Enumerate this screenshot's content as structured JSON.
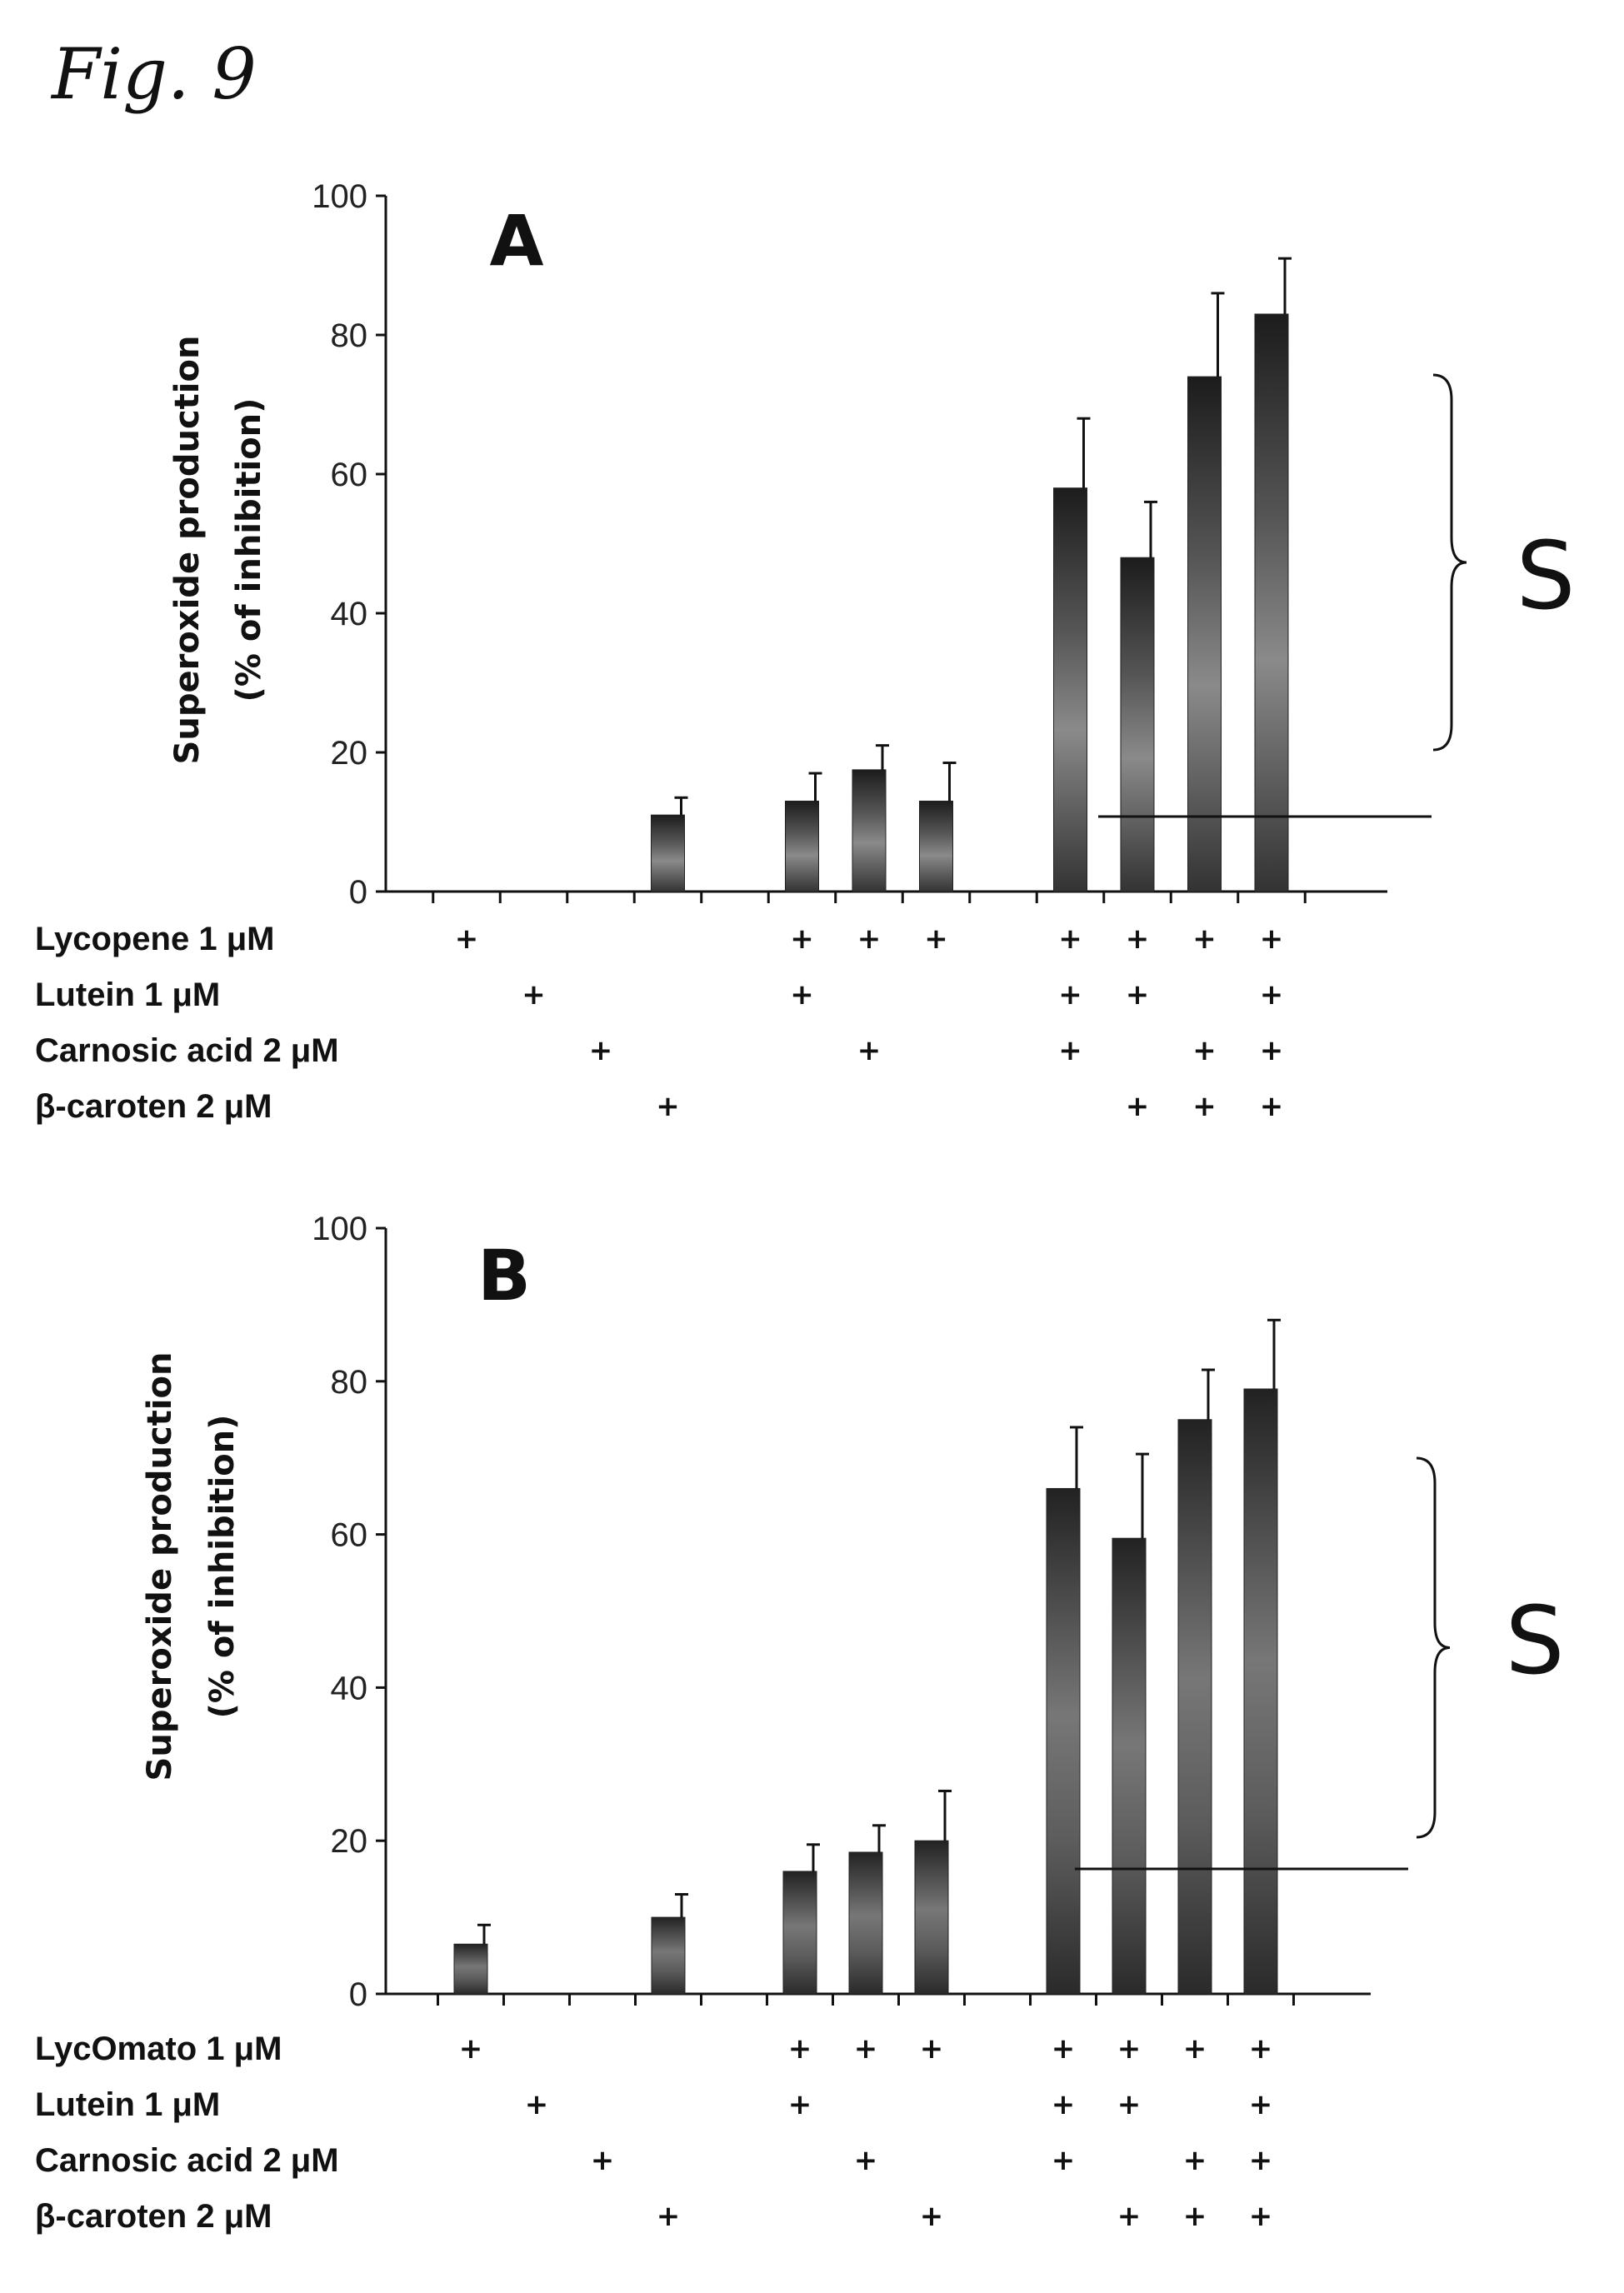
{
  "figure_title": "Fig. 9",
  "chart_data": [
    {
      "type": "bar",
      "panel": "A",
      "ylabel_line1": "Superoxide production",
      "ylabel_line2": "(% of inhibition)",
      "ylim": [
        0,
        100
      ],
      "yticks": [
        0,
        20,
        40,
        60,
        80,
        100
      ],
      "values": [
        null,
        null,
        null,
        11,
        null,
        13,
        17.5,
        13,
        null,
        58,
        48,
        74,
        83
      ],
      "errors": [
        null,
        null,
        null,
        2.5,
        null,
        4,
        3.5,
        5.5,
        null,
        10,
        8,
        12,
        8
      ],
      "conditions": [
        {
          "label": "Lycopene 1 μM",
          "plus": [
            0,
            5,
            6,
            7,
            9,
            10,
            11,
            12
          ]
        },
        {
          "label": "Lutein 1 μM",
          "plus": [
            1,
            5,
            9,
            10,
            12
          ]
        },
        {
          "label": "Carnosic acid 2 μM",
          "plus": [
            2,
            6,
            9,
            11,
            12
          ]
        },
        {
          "label": "β-caroten 2 μM",
          "plus": [
            3,
            10,
            11,
            12
          ]
        }
      ],
      "bracket_label": "S"
    },
    {
      "type": "bar",
      "panel": "B",
      "ylabel_line1": "Superoxide production",
      "ylabel_line2": "(% of inhibition)",
      "ylim": [
        0,
        100
      ],
      "yticks": [
        0,
        20,
        40,
        60,
        80,
        100
      ],
      "values": [
        6.5,
        null,
        null,
        10,
        null,
        16,
        18.5,
        20,
        null,
        66,
        59.5,
        75,
        79
      ],
      "errors": [
        2.5,
        null,
        null,
        3,
        null,
        3.5,
        3.5,
        6.5,
        null,
        8,
        11,
        6.5,
        9
      ],
      "conditions": [
        {
          "label": "LycOmato 1 μM",
          "plus": [
            0,
            5,
            6,
            7,
            9,
            10,
            11,
            12
          ]
        },
        {
          "label": "Lutein 1 μM",
          "plus": [
            1,
            5,
            9,
            10,
            12
          ]
        },
        {
          "label": "Carnosic acid 2 μM",
          "plus": [
            2,
            6,
            9,
            11,
            12
          ]
        },
        {
          "label": "β-caroten 2 μM",
          "plus": [
            3,
            7,
            10,
            11,
            12
          ]
        }
      ],
      "bracket_label": "S"
    }
  ]
}
